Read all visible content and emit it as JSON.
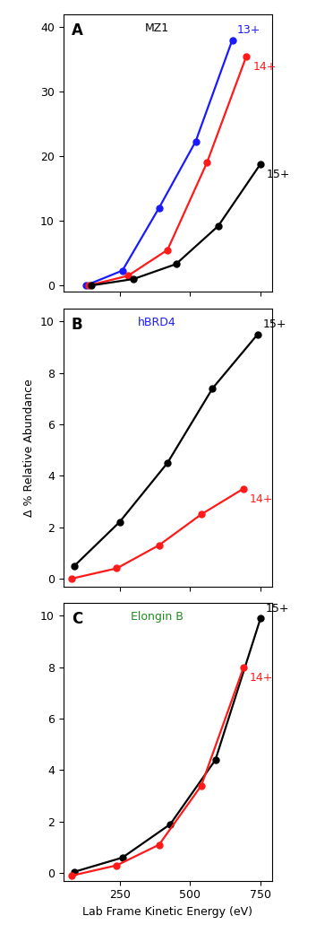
{
  "chart_data": [
    {
      "type": "line",
      "annotations": [
        {
          "text": "A",
          "color": "#000000"
        },
        {
          "text": "MZ1",
          "color": "#000000"
        }
      ],
      "xlim": [
        50,
        790
      ],
      "xticks": [
        250,
        500,
        750
      ],
      "ylim": [
        -1,
        42
      ],
      "yticks": [
        0,
        10,
        20,
        30,
        40
      ],
      "tick_labels": "y",
      "marker": "o",
      "line_style": "solid",
      "series": [
        {
          "name": "13+",
          "color": "#1a1aff",
          "x": [
            130,
            260,
            390,
            520,
            650
          ],
          "values": [
            0,
            2.3,
            12,
            22.3,
            38
          ]
        },
        {
          "name": "14+",
          "color": "#ff1a1a",
          "x": [
            140,
            280,
            420,
            560,
            700
          ],
          "values": [
            0,
            1.5,
            5.5,
            19,
            35.5
          ]
        },
        {
          "name": "15+",
          "color": "#000000",
          "x": [
            150,
            300,
            450,
            600,
            750
          ],
          "values": [
            0,
            1,
            3.3,
            9.2,
            18.8
          ]
        }
      ]
    },
    {
      "type": "line",
      "annotations": [
        {
          "text": "B",
          "color": "#000000"
        },
        {
          "text": "hBRD4",
          "color": "#1a1aff"
        }
      ],
      "y_label": "Δ % Relative Abundance",
      "xlim": [
        50,
        790
      ],
      "xticks": [
        250,
        500,
        750
      ],
      "ylim": [
        -0.3,
        10.5
      ],
      "yticks": [
        0,
        2,
        4,
        6,
        8,
        10
      ],
      "tick_labels": "y",
      "marker": "o",
      "line_style": "solid",
      "series": [
        {
          "name": "15+",
          "color": "#000000",
          "x": [
            90,
            250,
            420,
            580,
            740
          ],
          "values": [
            0.5,
            2.2,
            4.5,
            7.4,
            9.5
          ]
        },
        {
          "name": "14+",
          "color": "#ff1a1a",
          "x": [
            80,
            240,
            390,
            540,
            690
          ],
          "values": [
            0,
            0.4,
            1.3,
            2.5,
            3.5
          ]
        }
      ]
    },
    {
      "type": "line",
      "annotations": [
        {
          "text": "C",
          "color": "#000000"
        },
        {
          "text": "Elongin B",
          "color": "#1e8c1e"
        }
      ],
      "x_label": "Lab Frame Kinetic Energy (eV)",
      "xlim": [
        50,
        790
      ],
      "xticks": [
        250,
        500,
        750
      ],
      "ylim": [
        -0.3,
        10.5
      ],
      "yticks": [
        0,
        2,
        4,
        6,
        8,
        10
      ],
      "marker": "o",
      "line_style": "solid",
      "series": [
        {
          "name": "15+",
          "color": "#000000",
          "x": [
            90,
            260,
            430,
            590,
            750
          ],
          "values": [
            0.05,
            0.6,
            1.9,
            4.4,
            9.9
          ]
        },
        {
          "name": "14+",
          "color": "#ff1a1a",
          "x": [
            80,
            240,
            390,
            540,
            690
          ],
          "values": [
            -0.1,
            0.3,
            1.1,
            3.4,
            8.0
          ]
        }
      ]
    }
  ]
}
